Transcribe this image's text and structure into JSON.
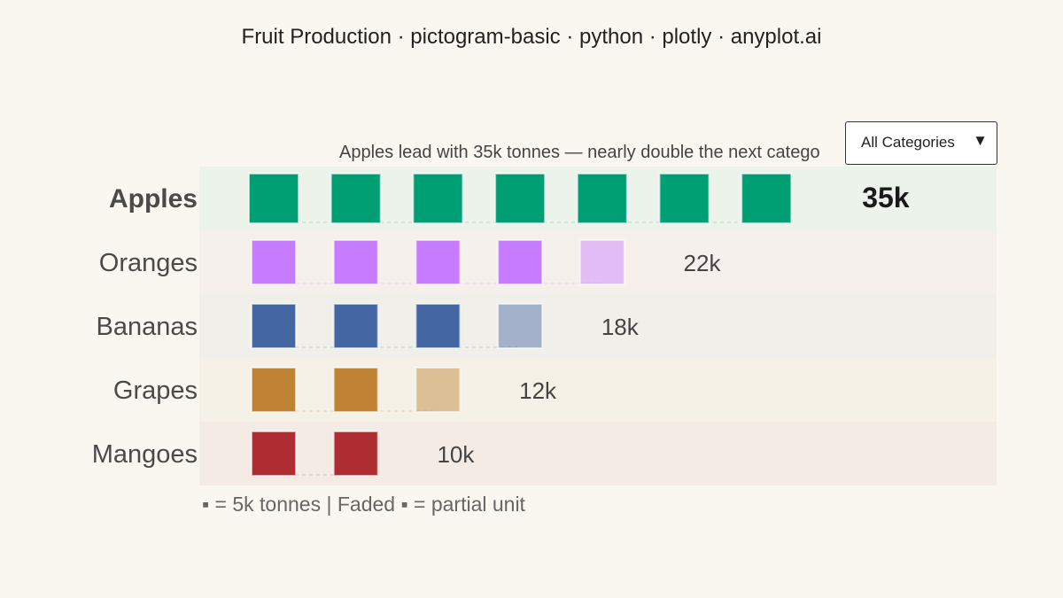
{
  "title": "Fruit Production · pictogram-basic · python · plotly · anyplot.ai",
  "subtitle": "Apples lead with 35k tonnes — nearly double the next catego",
  "dropdown": {
    "selected": "All Categories",
    "arrow": "▼"
  },
  "caption": "▪ = 5k tonnes  |  Faded ▪ = partial unit",
  "chart_data": {
    "type": "pictogram",
    "unit_value": 5,
    "unit": "k tonnes",
    "categories": [
      "Apples",
      "Oranges",
      "Bananas",
      "Grapes",
      "Mangoes"
    ],
    "values": [
      35,
      22,
      18,
      12,
      10
    ],
    "value_labels": [
      "35k",
      "22k",
      "18k",
      "12k",
      "10k"
    ],
    "highlighted": "Apples",
    "colors": [
      "#009e73",
      "#c77cff",
      "#4467a3",
      "#bf8333",
      "#ad2d33"
    ],
    "row_backgrounds": [
      "#ecf3ea",
      "#f6f0ed",
      "#f0efea",
      "#f5f1e6",
      "#f5ebe5"
    ]
  }
}
